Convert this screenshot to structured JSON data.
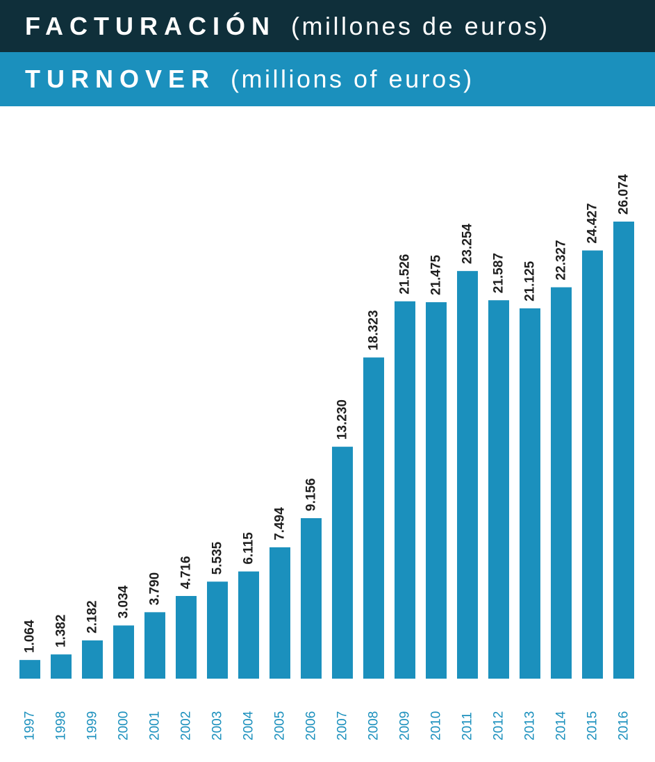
{
  "header": {
    "title_es_bold": "FACTURACIÓN",
    "title_es_unit": "(millones de euros)",
    "title_en_bold": "TURNOVER",
    "title_en_unit": "(millions of euros)"
  },
  "colors": {
    "header_dark": "#0f2f3a",
    "header_accent": "#1b90bd",
    "bar": "#1b90bd",
    "value_text": "#1f1f1f",
    "year_text": "#1b90bd"
  },
  "chart_data": {
    "type": "bar",
    "categories": [
      "1997",
      "1998",
      "1999",
      "2000",
      "2001",
      "2002",
      "2003",
      "2004",
      "2005",
      "2006",
      "2007",
      "2008",
      "2009",
      "2010",
      "2011",
      "2012",
      "2013",
      "2014",
      "2015",
      "2016"
    ],
    "values": [
      1064,
      1382,
      2182,
      3034,
      3790,
      4716,
      5535,
      6115,
      7494,
      9156,
      13230,
      18323,
      21526,
      21475,
      23254,
      21587,
      21125,
      22327,
      24427,
      26074
    ],
    "value_labels": [
      "1.064",
      "1.382",
      "2.182",
      "3.034",
      "3.790",
      "4.716",
      "5.535",
      "6.115",
      "7.494",
      "9.156",
      "13.230",
      "18.323",
      "21.526",
      "21.475",
      "23.254",
      "21.587",
      "21.125",
      "22.327",
      "24.427",
      "26.074"
    ],
    "title": "FACTURACIÓN (millones de euros) / TURNOVER (millions of euros)",
    "xlabel": "",
    "ylabel": "",
    "ylim": [
      0,
      26074
    ],
    "grid": false,
    "legend": "none"
  }
}
